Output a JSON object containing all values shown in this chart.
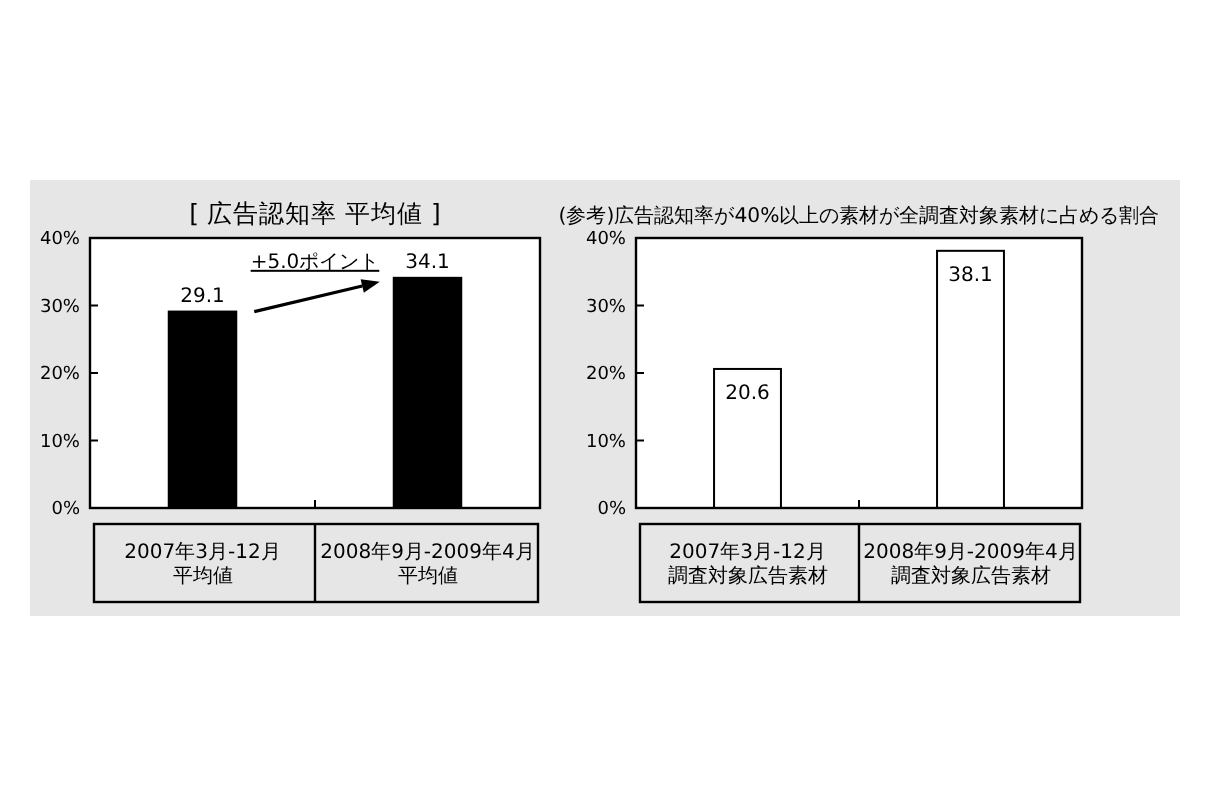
{
  "chart_data": [
    {
      "type": "bar",
      "title": "[ 広告認知率 平均値 ]",
      "categories": [
        "2007年3月-12月平均値",
        "2008年9月-2009年4月平均値"
      ],
      "values": [
        29.1,
        34.1
      ],
      "color": "#000000",
      "ylim": [
        0,
        40
      ],
      "yticks": [
        {
          "value": 0,
          "label": "0%"
        },
        {
          "value": 10,
          "label": "10%"
        },
        {
          "value": 20,
          "label": "20%"
        },
        {
          "value": 30,
          "label": "30%"
        },
        {
          "value": 40,
          "label": "40%"
        }
      ],
      "data_labels": true,
      "annotations": [
        "+5.0ポイント"
      ]
    },
    {
      "type": "bar",
      "title": "(参考)広告認知率が40%以上の素材が全調査対象素材に占める割合",
      "categories": [
        "2007年3月-12月調査対象広告素材",
        "2008年9月-2009年4月調査対象広告素材"
      ],
      "values": [
        20.6,
        38.1
      ],
      "color": "#ffffff",
      "ylim": [
        0,
        40
      ],
      "yticks": [
        {
          "value": 0,
          "label": "0%"
        },
        {
          "value": 10,
          "label": "10%"
        },
        {
          "value": 20,
          "label": "20%"
        },
        {
          "value": 30,
          "label": "30%"
        },
        {
          "value": 40,
          "label": "40%"
        }
      ],
      "data_labels": true
    }
  ]
}
